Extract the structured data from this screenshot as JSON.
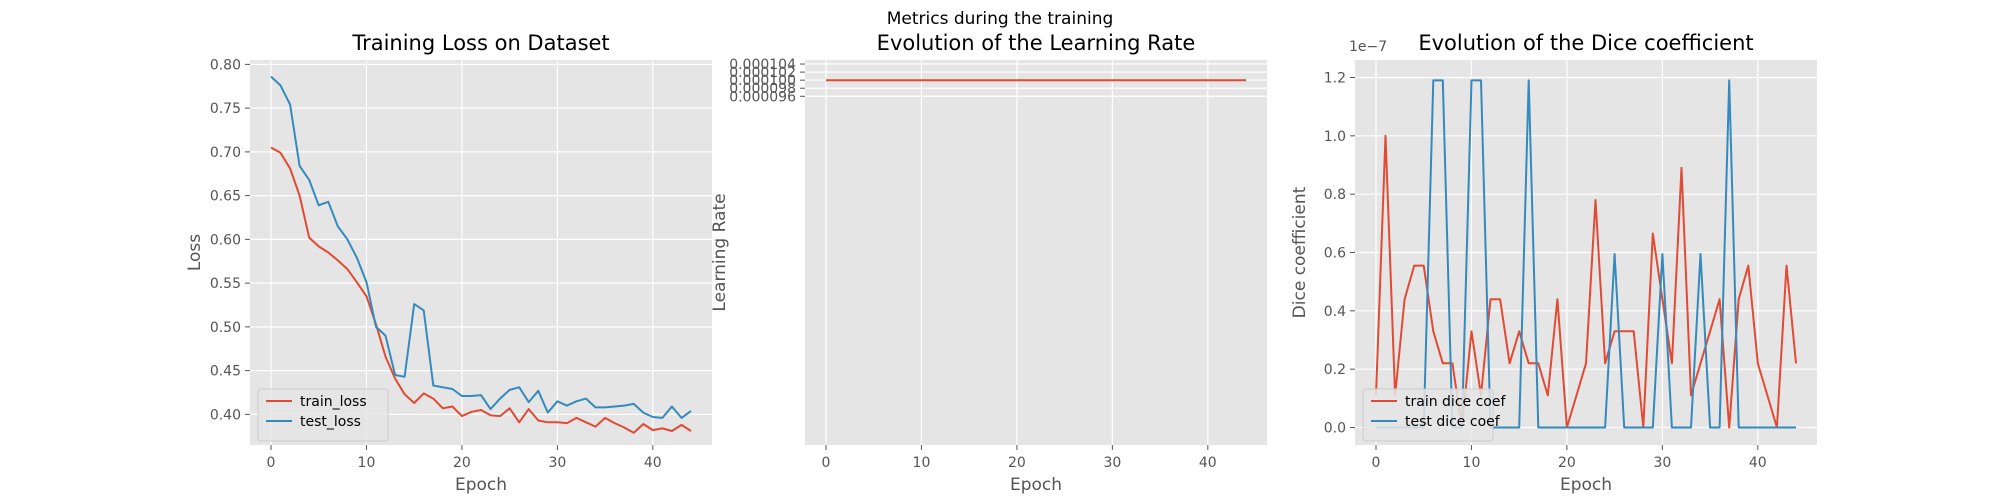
{
  "figure": {
    "suptitle": "Metrics during the training"
  },
  "colors": {
    "train": "#E24A33",
    "test": "#348ABD",
    "axes_bg": "#E5E5E5",
    "grid": "#FFFFFF",
    "tick_text": "#555555"
  },
  "chart_data": [
    {
      "type": "line",
      "title": "Training Loss on Dataset",
      "xlabel": "Epoch",
      "ylabel": "Loss",
      "xlim": [
        -2.2,
        46.2
      ],
      "ylim": [
        0.365,
        0.805
      ],
      "xticks": [
        0,
        10,
        20,
        30,
        40
      ],
      "xtick_labels": [
        "0",
        "10",
        "20",
        "30",
        "40"
      ],
      "yticks": [
        0.4,
        0.45,
        0.5,
        0.55,
        0.6,
        0.65,
        0.7,
        0.75,
        0.8
      ],
      "ytick_labels": [
        "0.40",
        "0.45",
        "0.50",
        "0.55",
        "0.60",
        "0.65",
        "0.70",
        "0.75",
        "0.80"
      ],
      "grid": true,
      "legend_position": "lower-left",
      "x": [
        0,
        1,
        2,
        3,
        4,
        5,
        6,
        7,
        8,
        9,
        10,
        11,
        12,
        13,
        14,
        15,
        16,
        17,
        18,
        19,
        20,
        21,
        22,
        23,
        24,
        25,
        26,
        27,
        28,
        29,
        30,
        31,
        32,
        33,
        34,
        35,
        36,
        37,
        38,
        39,
        40,
        41,
        42,
        43,
        44
      ],
      "series": [
        {
          "name": "train_loss",
          "color": "#E24A33",
          "values": [
            0.705,
            0.699,
            0.681,
            0.65,
            0.602,
            0.592,
            0.585,
            0.576,
            0.566,
            0.551,
            0.535,
            0.503,
            0.466,
            0.441,
            0.423,
            0.413,
            0.424,
            0.418,
            0.407,
            0.409,
            0.398,
            0.403,
            0.405,
            0.399,
            0.398,
            0.407,
            0.391,
            0.406,
            0.393,
            0.391,
            0.391,
            0.39,
            0.396,
            0.391,
            0.386,
            0.396,
            0.39,
            0.385,
            0.379,
            0.389,
            0.382,
            0.384,
            0.381,
            0.388,
            0.381
          ]
        },
        {
          "name": "test_loss",
          "color": "#348ABD",
          "values": [
            0.786,
            0.776,
            0.754,
            0.684,
            0.668,
            0.639,
            0.643,
            0.615,
            0.6,
            0.579,
            0.551,
            0.5,
            0.49,
            0.445,
            0.443,
            0.526,
            0.519,
            0.433,
            0.431,
            0.429,
            0.421,
            0.421,
            0.422,
            0.406,
            0.418,
            0.428,
            0.431,
            0.414,
            0.427,
            0.402,
            0.415,
            0.41,
            0.415,
            0.418,
            0.408,
            0.408,
            0.409,
            0.41,
            0.412,
            0.402,
            0.397,
            0.396,
            0.409,
            0.396,
            0.404
          ]
        }
      ]
    },
    {
      "type": "line",
      "title": "Evolution of the Learning Rate",
      "xlabel": "Epoch",
      "ylabel": "Learning Rate",
      "xlim": [
        -2.2,
        46.2
      ],
      "ylim": [
        9.5e-06,
        0.000105
      ],
      "xticks": [
        0,
        10,
        20,
        30,
        40
      ],
      "xtick_labels": [
        "0",
        "10",
        "20",
        "30",
        "40"
      ],
      "yticks": [
        9.6e-05,
        9.8e-05,
        0.0001,
        0.000102,
        0.000104
      ],
      "ytick_labels": [
        "0.000096",
        "0.000098",
        "0.000100",
        "0.000102",
        "0.000104"
      ],
      "grid": true,
      "x": [
        0,
        44
      ],
      "series": [
        {
          "color": "#E24A33",
          "values": [
            0.0001,
            0.0001
          ]
        }
      ]
    },
    {
      "type": "line",
      "title": "Evolution of the Dice coefficient",
      "xlabel": "Epoch",
      "ylabel": "Dice coefficient",
      "y_offset_label": "1e−7",
      "xlim": [
        -2.2,
        46.2
      ],
      "ylim": [
        -0.06,
        1.26
      ],
      "xticks": [
        0,
        10,
        20,
        30,
        40
      ],
      "xtick_labels": [
        "0",
        "10",
        "20",
        "30",
        "40"
      ],
      "yticks": [
        0.0,
        0.2,
        0.4,
        0.6,
        0.8,
        1.0,
        1.2
      ],
      "ytick_labels": [
        "0.0",
        "0.2",
        "0.4",
        "0.6",
        "0.8",
        "1.0",
        "1.2"
      ],
      "grid": true,
      "legend_position": "lower-left",
      "x": [
        0,
        1,
        2,
        3,
        4,
        5,
        6,
        7,
        8,
        9,
        10,
        11,
        12,
        13,
        14,
        15,
        16,
        17,
        18,
        19,
        20,
        21,
        22,
        23,
        24,
        25,
        26,
        27,
        28,
        29,
        30,
        31,
        32,
        33,
        34,
        35,
        36,
        37,
        38,
        39,
        40,
        41,
        42,
        43,
        44
      ],
      "series": [
        {
          "name": "train dice coef",
          "color": "#E24A33",
          "values": [
            0.11,
            1.0,
            0.11,
            0.44,
            0.555,
            0.555,
            0.33,
            0.22,
            0.22,
            0.0,
            0.33,
            0.11,
            0.44,
            0.44,
            0.22,
            0.33,
            0.22,
            0.22,
            0.11,
            0.44,
            0.0,
            0.11,
            0.22,
            0.78,
            0.22,
            0.33,
            0.33,
            0.33,
            0.0,
            0.665,
            0.44,
            0.22,
            0.89,
            0.11,
            0.22,
            0.33,
            0.44,
            0.0,
            0.44,
            0.555,
            0.22,
            0.11,
            0.0,
            0.555,
            0.22
          ]
        },
        {
          "name": "test dice coef",
          "color": "#348ABD",
          "values": [
            0.0,
            0.0,
            0.0,
            0.0,
            0.0,
            0.0,
            1.19,
            1.19,
            0.0,
            0.0,
            1.19,
            1.19,
            0.0,
            0.0,
            0.0,
            0.0,
            1.19,
            0.0,
            0.0,
            0.0,
            0.0,
            0.0,
            0.0,
            0.0,
            0.0,
            0.595,
            0.0,
            0.0,
            0.0,
            0.0,
            0.595,
            0.0,
            0.0,
            0.0,
            0.595,
            0.0,
            0.0,
            1.19,
            0.0,
            0.0,
            0.0,
            0.0,
            0.0,
            0.0,
            0.0
          ]
        }
      ]
    }
  ]
}
